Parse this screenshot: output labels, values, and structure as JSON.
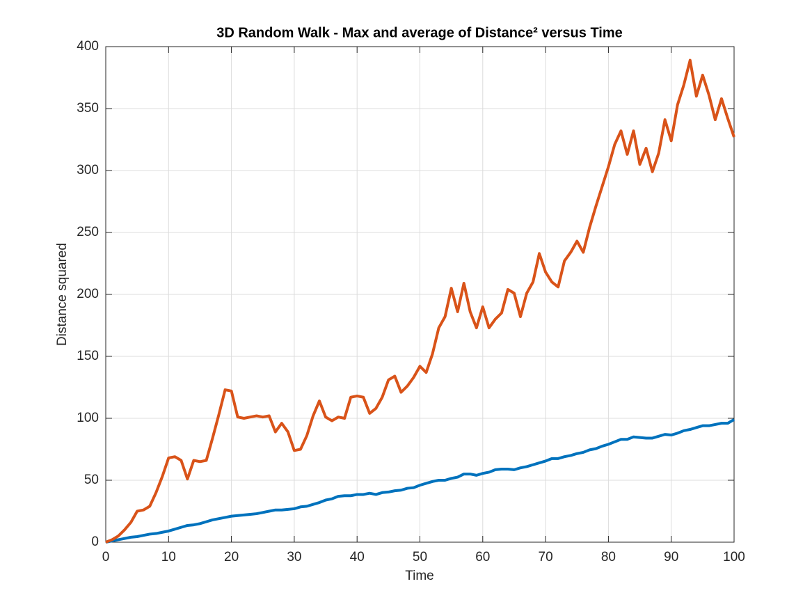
{
  "chart_data": {
    "type": "line",
    "title": "3D Random Walk - Max and average of Distance² versus Time",
    "x_label": "Time",
    "y_label": "Distance squared",
    "x": [
      0,
      1,
      2,
      3,
      4,
      5,
      6,
      7,
      8,
      9,
      10,
      11,
      12,
      13,
      14,
      15,
      16,
      17,
      18,
      19,
      20,
      21,
      22,
      23,
      24,
      25,
      26,
      27,
      28,
      29,
      30,
      31,
      32,
      33,
      34,
      35,
      36,
      37,
      38,
      39,
      40,
      41,
      42,
      43,
      44,
      45,
      46,
      47,
      48,
      49,
      50,
      51,
      52,
      53,
      54,
      55,
      56,
      57,
      58,
      59,
      60,
      61,
      62,
      63,
      64,
      65,
      66,
      67,
      68,
      69,
      70,
      71,
      72,
      73,
      74,
      75,
      76,
      77,
      78,
      79,
      80,
      81,
      82,
      83,
      84,
      85,
      86,
      87,
      88,
      89,
      90,
      91,
      92,
      93,
      94,
      95,
      96,
      97,
      98,
      99,
      100
    ],
    "series": [
      {
        "color": "#0072bd",
        "values": [
          0,
          1,
          2,
          3,
          4,
          4.5,
          5.5,
          6.5,
          7,
          8,
          9,
          10.5,
          12,
          13.5,
          14,
          15,
          16.5,
          18,
          19,
          20,
          21,
          21.5,
          22,
          22.5,
          23,
          24,
          25,
          26,
          26,
          26.5,
          27,
          28.5,
          29,
          30.5,
          32,
          34,
          35,
          37,
          37.5,
          37.5,
          38.5,
          38.5,
          39.5,
          38.5,
          40,
          40.5,
          41.5,
          42,
          43.5,
          44,
          46,
          47.5,
          49,
          50,
          50,
          51.5,
          52.5,
          55,
          55,
          54,
          55.5,
          56.5,
          58.5,
          59,
          59,
          58.5,
          60,
          61,
          62.5,
          64,
          65.5,
          67.5,
          67.5,
          69,
          70,
          71.5,
          72.5,
          74.5,
          75.5,
          77.5,
          79,
          81,
          83,
          83,
          85,
          84.5,
          84,
          84,
          85.5,
          87,
          86.5,
          88,
          90,
          91,
          92.5,
          94,
          94,
          95,
          96,
          96,
          99
        ]
      },
      {
        "color": "#d95319",
        "values": [
          0,
          2,
          5,
          10,
          16,
          25,
          26,
          29,
          40,
          53,
          68,
          69,
          66,
          51,
          66,
          65,
          66,
          84,
          103,
          123,
          122,
          101,
          100,
          101,
          102,
          101,
          102,
          89,
          96,
          89,
          74,
          75,
          86,
          102,
          114,
          101,
          98,
          101,
          100,
          117,
          118,
          117,
          104,
          108,
          117,
          131,
          134,
          121,
          126,
          133,
          142,
          137,
          152,
          173,
          182,
          205,
          186,
          209,
          186,
          173,
          190,
          173,
          180,
          185,
          204,
          201,
          182,
          201,
          210,
          233,
          218,
          210,
          206,
          227,
          234,
          243,
          234,
          254,
          271,
          287,
          303,
          321,
          332,
          313,
          332,
          305,
          318,
          299,
          314,
          341,
          324,
          353,
          369,
          389,
          360,
          377,
          361,
          341,
          358,
          342,
          327
        ]
      }
    ],
    "xlim": [
      0,
      100
    ],
    "xticks": [
      0,
      10,
      20,
      30,
      40,
      50,
      60,
      70,
      80,
      90,
      100
    ],
    "ylim": [
      0,
      400
    ],
    "yticks": [
      0,
      50,
      100,
      150,
      200,
      250,
      300,
      350,
      400
    ],
    "grid": true
  }
}
